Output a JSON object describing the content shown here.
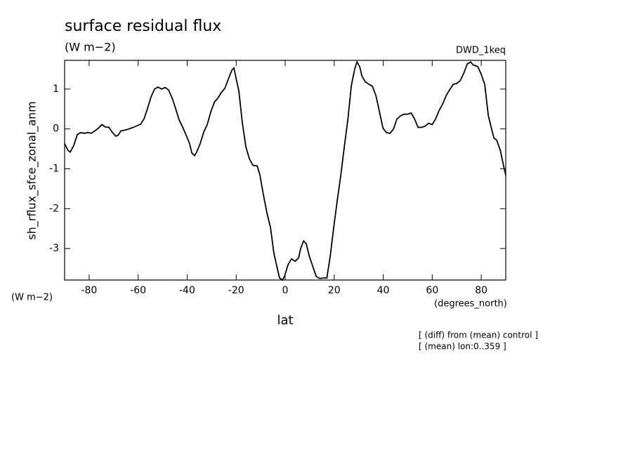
{
  "chart_data": {
    "type": "line",
    "title": "surface residual flux",
    "units": "(W m−2)",
    "dataset": "DWD_1keq",
    "ylabel": "sh_rflux_sfce_zonal_anm",
    "yunits": "(W m−2)",
    "xunits": "(degrees_north)",
    "xlabel": "lat",
    "notes": [
      "[ (diff) from (mean) control ]",
      "[ (mean) lon:0..359 ]"
    ],
    "xlim": [
      -90,
      90
    ],
    "ylim": [
      -3.79,
      1.72
    ],
    "xticks": [
      -80,
      -60,
      -40,
      -20,
      0,
      20,
      40,
      60,
      80
    ],
    "yticks": [
      -3,
      -2,
      -1,
      0,
      1
    ],
    "x": [
      -90.0,
      -88.6,
      -87.7,
      -86.3,
      -84.8,
      -83.4,
      -82.0,
      -80.5,
      -79.1,
      -77.7,
      -76.2,
      -74.8,
      -73.4,
      -71.9,
      -70.5,
      -69.1,
      -68.2,
      -67.0,
      -64.8,
      -61.9,
      -59.0,
      -57.6,
      -56.2,
      -54.7,
      -53.3,
      -51.9,
      -50.4,
      -49.0,
      -47.6,
      -46.1,
      -44.7,
      -43.3,
      -41.8,
      -40.4,
      -39.0,
      -38.1,
      -37.0,
      -36.1,
      -34.7,
      -33.2,
      -31.8,
      -30.4,
      -28.9,
      -27.5,
      -26.1,
      -24.6,
      -23.2,
      -21.8,
      -20.9,
      -20.0,
      -18.9,
      -17.5,
      -16.0,
      -14.6,
      -13.2,
      -11.4,
      -10.3,
      -8.9,
      -7.4,
      -6.0,
      -4.6,
      -3.1,
      -2.3,
      -1.1,
      -0.3,
      1.2,
      2.6,
      4.1,
      5.5,
      6.3,
      7.5,
      8.6,
      9.8,
      11.2,
      12.7,
      14.1,
      15.5,
      17.0,
      18.4,
      19.8,
      21.3,
      22.7,
      24.1,
      25.6,
      27.0,
      28.4,
      29.3,
      30.4,
      31.3,
      32.7,
      34.2,
      35.6,
      37.0,
      38.5,
      39.9,
      41.3,
      42.8,
      44.2,
      45.6,
      47.1,
      48.5,
      49.9,
      51.4,
      52.8,
      54.2,
      55.7,
      57.1,
      58.5,
      60.0,
      61.4,
      62.8,
      64.3,
      65.7,
      67.1,
      68.6,
      70.0,
      71.4,
      72.9,
      74.3,
      75.7,
      76.6,
      78.6,
      80.0,
      81.4,
      82.9,
      84.3,
      85.2,
      86.3,
      87.8,
      89.2,
      90.0
    ],
    "series": [
      {
        "color": "#000000",
        "values": [
          -0.37,
          -0.54,
          -0.58,
          -0.42,
          -0.14,
          -0.09,
          -0.11,
          -0.09,
          -0.11,
          -0.05,
          0.02,
          0.11,
          0.05,
          0.04,
          -0.09,
          -0.18,
          -0.16,
          -0.05,
          -0.02,
          0.04,
          0.12,
          0.25,
          0.51,
          0.81,
          1.0,
          1.05,
          1.0,
          1.04,
          0.98,
          0.77,
          0.51,
          0.23,
          0.04,
          -0.16,
          -0.37,
          -0.6,
          -0.67,
          -0.58,
          -0.37,
          -0.07,
          0.11,
          0.42,
          0.67,
          0.77,
          0.91,
          1.02,
          1.25,
          1.47,
          1.53,
          1.26,
          0.95,
          0.16,
          -0.46,
          -0.75,
          -0.91,
          -0.93,
          -1.16,
          -1.65,
          -2.12,
          -2.47,
          -3.12,
          -3.53,
          -3.74,
          -3.79,
          -3.7,
          -3.4,
          -3.26,
          -3.32,
          -3.23,
          -3.0,
          -2.81,
          -2.88,
          -3.18,
          -3.44,
          -3.7,
          -3.75,
          -3.74,
          -3.74,
          -3.18,
          -2.47,
          -1.77,
          -1.16,
          -0.46,
          0.25,
          1.09,
          1.51,
          1.68,
          1.56,
          1.33,
          1.18,
          1.12,
          1.07,
          0.84,
          0.42,
          0.02,
          -0.09,
          -0.11,
          0,
          0.25,
          0.33,
          0.37,
          0.37,
          0.4,
          0.25,
          0.04,
          0.04,
          0.07,
          0.14,
          0.11,
          0.25,
          0.46,
          0.63,
          0.84,
          0.98,
          1.12,
          1.14,
          1.21,
          1.4,
          1.63,
          1.68,
          1.61,
          1.56,
          1.37,
          1.12,
          0.33,
          -0.02,
          -0.23,
          -0.28,
          -0.54,
          -0.95,
          -1.16
        ]
      }
    ]
  }
}
